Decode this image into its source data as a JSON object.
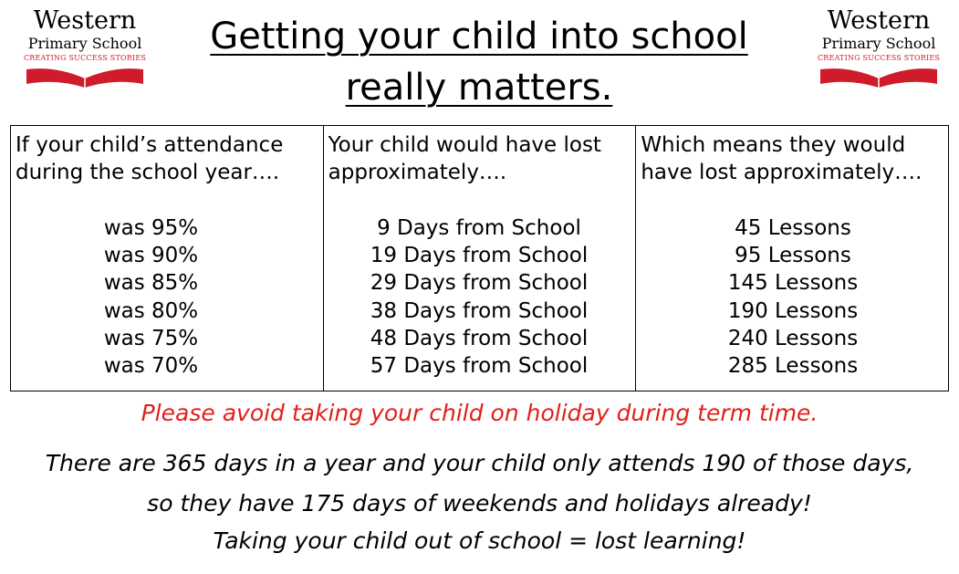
{
  "logo": {
    "name": "Western",
    "sub": "Primary School",
    "tagline": "CREATING SUCCESS STORIES"
  },
  "title": {
    "line1": "Getting your child into school",
    "line2": "really matters."
  },
  "table": {
    "headers": [
      [
        "If your child’s attendance",
        "during the school year…."
      ],
      [
        "Your child would have lost",
        "approximately…."
      ],
      [
        "Which means they would",
        "have lost approximately…."
      ]
    ],
    "attendance": [
      "was 95%",
      "was 90%",
      "was 85%",
      "was 80%",
      "was 75%",
      "was 70%"
    ],
    "days": [
      "9 Days from School",
      "19 Days from School",
      "29 Days from School",
      "38 Days from School",
      "48 Days from School",
      "57 Days from School"
    ],
    "lessons": [
      "45 Lessons",
      "95 Lessons",
      "145 Lessons",
      "190 Lessons",
      "240 Lessons",
      "285 Lessons"
    ]
  },
  "notes": {
    "holiday": "Please avoid taking your child on holiday during term time.",
    "days_line1": "There are 365 days in a year and your child only attends 190 of those days,",
    "days_line2": "so they have 175 days of weekends and holidays already!",
    "closing": "Taking your child out of school = lost learning!"
  },
  "colors": {
    "accent": "#e0201b",
    "logo_red": "#d01c2a"
  }
}
